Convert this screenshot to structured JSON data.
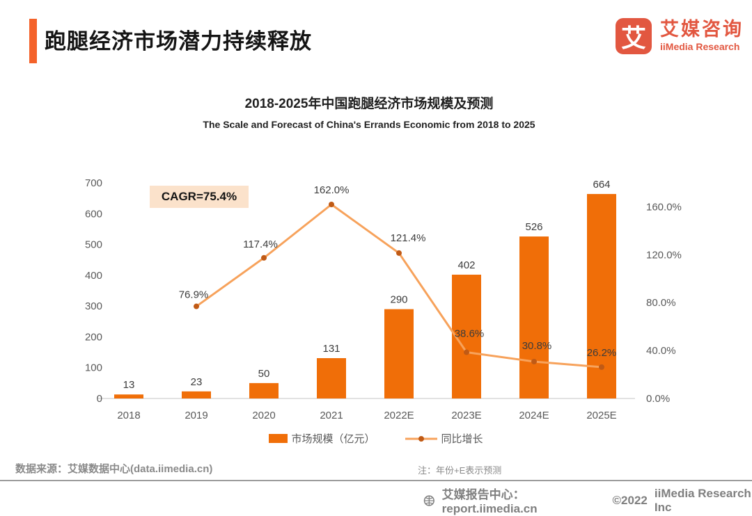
{
  "header": {
    "title": "跑腿经济市场潜力持续释放",
    "logo": {
      "glyph": "艾",
      "name_cn": "艾媒咨询",
      "name_en": "iiMedia Research"
    }
  },
  "chart": {
    "title_cn": "2018-2025年中国跑腿经济市场规模及预测",
    "title_en": "The Scale and Forecast of China's Errands Economic from 2018 to 2025",
    "cagr_label": "CAGR=75.4%"
  },
  "chart_data": {
    "type": "bar+line",
    "title": "2018-2025年中国跑腿经济市场规模及预测",
    "subtitle": "The Scale and Forecast of China's Errands Economic from 2018 to 2025",
    "categories": [
      "2018",
      "2019",
      "2020",
      "2021",
      "2022E",
      "2023E",
      "2024E",
      "2025E"
    ],
    "series": [
      {
        "name": "市场规模（亿元）",
        "type": "bar",
        "values": [
          13,
          23,
          50,
          131,
          290,
          402,
          526,
          664
        ],
        "labels": [
          "13",
          "23",
          "50",
          "131",
          "290",
          "402",
          "526",
          "664"
        ],
        "color": "#F06E08",
        "axis": "left"
      },
      {
        "name": "同比增长",
        "type": "line",
        "values": [
          null,
          76.9,
          117.4,
          162.0,
          121.4,
          38.6,
          30.8,
          26.2
        ],
        "labels": [
          "",
          "76.9%",
          "117.4%",
          "162.0%",
          "121.4%",
          "38.6%",
          "30.8%",
          "26.2%"
        ],
        "color": "#F7A25B",
        "marker_color": "#C05A15",
        "axis": "right"
      }
    ],
    "left_axis": {
      "min": 0,
      "max": 700,
      "ticks": [
        0,
        100,
        200,
        300,
        400,
        500,
        600,
        700
      ]
    },
    "right_axis": {
      "min": 0,
      "max": 180,
      "ticks": [
        {
          "value": 0,
          "label": "0.0%"
        },
        {
          "value": 40,
          "label": "40.0%"
        },
        {
          "value": 80,
          "label": "80.0%"
        },
        {
          "value": 120,
          "label": "120.0%"
        },
        {
          "value": 160,
          "label": "160.0%"
        }
      ]
    },
    "annotations": [
      "CAGR=75.4%"
    ],
    "legend_position": "bottom",
    "grid": false
  },
  "legend": {
    "bar_label": "市场规模（亿元）",
    "line_label": "同比增长"
  },
  "footer": {
    "source": "数据来源：艾媒数据中心(data.iimedia.cn)",
    "note": "注：年份+E表示预测",
    "report_center": "艾媒报告中心：report.iimedia.cn",
    "copyright_year": "©2022",
    "copyright_name": "iiMedia Research  Inc"
  },
  "colors": {
    "accent_bar": "#F4622A",
    "logo": "#E25740",
    "bar": "#F06E08",
    "line": "#F7A25B",
    "marker": "#C05A15",
    "cagr_bg": "#FBE2CB",
    "axis_text": "#595959",
    "baseline": "#D9D9D9",
    "footer_text": "#8a8a8a"
  }
}
